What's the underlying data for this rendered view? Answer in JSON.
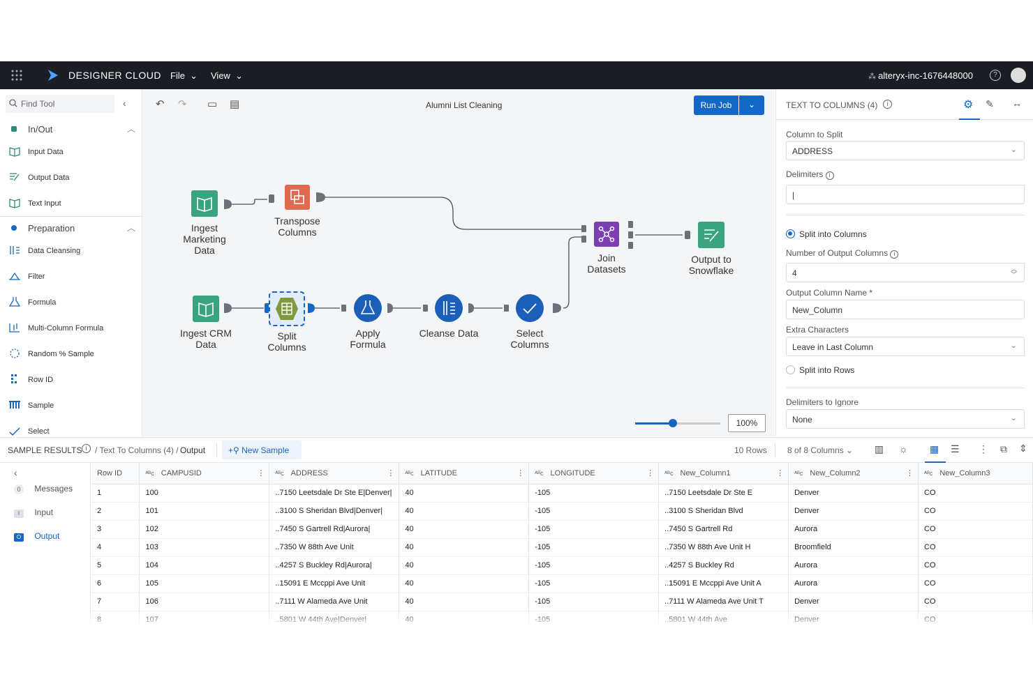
{
  "topbar": {
    "brand": "DESIGNER CLOUD",
    "file_menu": "File",
    "view_menu": "View",
    "org": "alteryx-inc-1676448000",
    "help": "?"
  },
  "sidebar": {
    "search_placeholder": "Find Tool",
    "categories": [
      {
        "label": "In/Out",
        "color": "#2e8b77"
      },
      {
        "label": "Preparation",
        "color": "#1466c7"
      }
    ],
    "inout_tools": [
      "Input Data",
      "Output Data",
      "Text Input"
    ],
    "prep_tools": [
      "Data Cleansing",
      "Filter",
      "Formula",
      "Multi-Column Formula",
      "Random % Sample",
      "Row ID",
      "Sample",
      "Select"
    ]
  },
  "canvas": {
    "workflow_title": "Alumni List Cleaning",
    "run_job": "Run Job",
    "zoom": "100%",
    "nodes": [
      {
        "id": "ingest-marketing",
        "label1": "Ingest",
        "label2": "Marketing",
        "label3": "Data"
      },
      {
        "id": "transpose",
        "label1": "Transpose",
        "label2": "Columns"
      },
      {
        "id": "join",
        "label1": "Join",
        "label2": "Datasets"
      },
      {
        "id": "output-snowflake",
        "label1": "Output to",
        "label2": "Snowflake"
      },
      {
        "id": "ingest-crm",
        "label1": "Ingest CRM",
        "label2": "Data"
      },
      {
        "id": "split",
        "label1": "Split",
        "label2": "Columns"
      },
      {
        "id": "apply-formula",
        "label1": "Apply",
        "label2": "Formula"
      },
      {
        "id": "cleanse",
        "label1": "Cleanse Data"
      },
      {
        "id": "select",
        "label1": "Select",
        "label2": "Columns"
      }
    ]
  },
  "config": {
    "title": "TEXT TO COLUMNS (4)",
    "column_to_split_label": "Column to Split",
    "column_to_split": "ADDRESS",
    "delimiters_label": "Delimiters",
    "delimiters_value": "|",
    "split_columns": "Split into Columns",
    "num_output_label": "Number of Output Columns",
    "num_output": "4",
    "output_name_label": "Output Column Name *",
    "output_name": "New_Column",
    "extra_chars_label": "Extra Characters",
    "extra_chars": "Leave in Last Column",
    "split_rows": "Split into Rows",
    "ignore_label": "Delimiters to Ignore",
    "ignore_value": "None"
  },
  "results": {
    "title": "SAMPLE RESULTS",
    "crumb1": "/ Text To Columns (4) /",
    "crumb2": "Output",
    "new_sample": "New Sample",
    "rows": "10 Rows",
    "columns": "8 of 8 Columns",
    "side": [
      {
        "label": "Messages",
        "badge": "0"
      },
      {
        "label": "Input",
        "badge": "I"
      },
      {
        "label": "Output",
        "badge": "O"
      }
    ],
    "headers": [
      "Row ID",
      "CAMPUSID",
      "ADDRESS",
      "LATITUDE",
      "LONGITUDE",
      "New_Column1",
      "New_Column2",
      "New_Column3"
    ],
    "rows_data": [
      [
        "1",
        "100",
        "..7150 Leetsdale Dr Ste E|Denver|",
        "40",
        "-105",
        "..7150 Leetsdale Dr Ste E",
        "Denver",
        "CO"
      ],
      [
        "2",
        "101",
        "..3100 S Sheridan Blvd|Denver|",
        "40",
        "-105",
        "..3100 S Sheridan Blvd",
        "Denver",
        "CO"
      ],
      [
        "3",
        "102",
        "..7450 S Gartrell Rd|Aurora|",
        "40",
        "-105",
        "..7450 S Gartrell Rd",
        "Aurora",
        "CO"
      ],
      [
        "4",
        "103",
        "..7350 W 88th Ave Unit",
        "40",
        "-105",
        "..7350 W 88th Ave Unit H",
        "Broomfield",
        "CO"
      ],
      [
        "5",
        "104",
        "..4257 S Buckley Rd|Aurora|",
        "40",
        "-105",
        "..4257 S Buckley Rd",
        "Aurora",
        "CO"
      ],
      [
        "6",
        "105",
        "..15091 E Mccppi Ave Unit",
        "40",
        "-105",
        "..15091 E Mccppi Ave Unit A",
        "Aurora",
        "CO"
      ],
      [
        "7",
        "106",
        "..7111 W Alameda Ave Unit",
        "40",
        "-105",
        "..7111 W Alameda Ave Unit T",
        "Denver",
        "CO"
      ],
      [
        "8",
        "107",
        "..5801 W 44th Ave|Denver|",
        "40",
        "-105",
        "..5801 W 44th Ave",
        "Denver",
        "CO"
      ]
    ]
  }
}
